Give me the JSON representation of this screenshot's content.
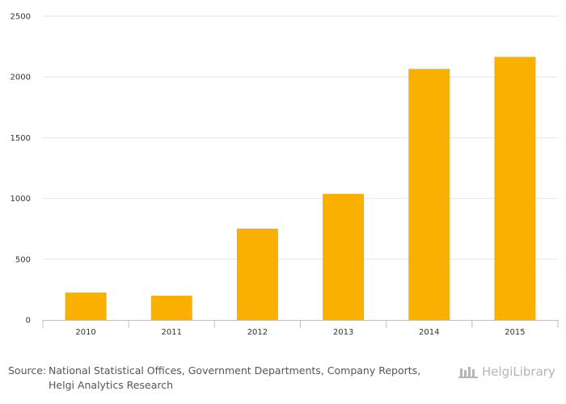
{
  "chart_data": {
    "type": "bar",
    "categories": [
      "2010",
      "2011",
      "2012",
      "2013",
      "2014",
      "2015"
    ],
    "values": [
      225,
      200,
      752,
      1038,
      2066,
      2165
    ],
    "title": "",
    "xlabel": "",
    "ylabel": "",
    "ylim": [
      0,
      2500
    ],
    "yticks": [
      0,
      500,
      1000,
      1500,
      2000,
      2500
    ],
    "grid": true,
    "bar_color": "#f9b000"
  },
  "footer": {
    "source_label": "Source:",
    "source_text": "National Statistical Offices, Government Departments, Company Reports, Helgi Analytics Research"
  },
  "logo": {
    "text": "HelgiLibrary",
    "icon": "library-building-icon"
  }
}
